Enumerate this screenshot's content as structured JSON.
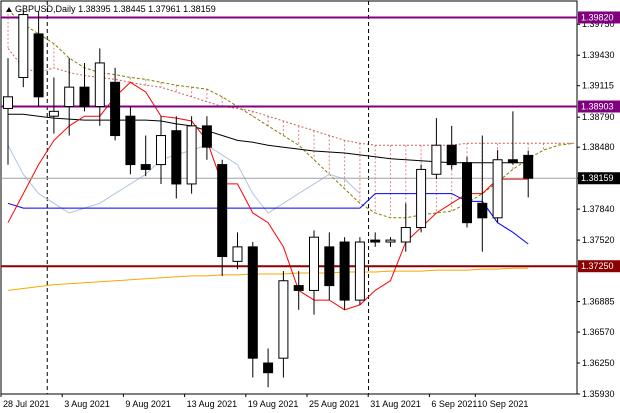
{
  "window": {
    "symbol": "GBPUSD",
    "timeframe": "Daily",
    "ohlc": "1.38395 1.38445 1.37961 1.38159",
    "symbol_icon": "symbol-triangle-icon"
  },
  "colors": {
    "bull": "#ffffff",
    "bear": "#000000",
    "tenkan": "#ff0000",
    "kijun": "#0000ff",
    "ma_slow": "#000000",
    "ma_long": "#ffa500",
    "chikou": "#b0c4de",
    "senkou_b": "#808000",
    "cloud": "#cd5c5c",
    "resistance_line": "#800080",
    "support_line": "#8b0000",
    "current_price": "#000000"
  },
  "chart_data": {
    "type": "candlestick",
    "title": "GBPUSD,Daily",
    "ylim": [
      1.3593,
      1.3999
    ],
    "y_ticks": [
      "1.39750",
      "1.39430",
      "1.39115",
      "1.38790",
      "1.38480",
      "1.38159",
      "1.37840",
      "1.37520",
      "1.37250",
      "1.36885",
      "1.36570",
      "1.36250",
      "1.35930"
    ],
    "x_ticks": [
      "28 Jul 2021",
      "3 Aug 2021",
      "9 Aug 2021",
      "13 Aug 2021",
      "19 Aug 2021",
      "25 Aug 2021",
      "31 Aug 2021",
      "6 Sep 2021",
      "10 Sep 2021"
    ],
    "x_tick_index": [
      0,
      4,
      8,
      12,
      16,
      20,
      24,
      28,
      31
    ],
    "candles": [
      {
        "o": 1.3888,
        "h": 1.394,
        "l": 1.383,
        "c": 1.39
      },
      {
        "o": 1.392,
        "h": 1.399,
        "l": 1.391,
        "c": 1.3985
      },
      {
        "o": 1.3965,
        "h": 1.3988,
        "l": 1.389,
        "c": 1.39
      },
      {
        "o": 1.388,
        "h": 1.392,
        "l": 1.3862,
        "c": 1.3885
      },
      {
        "o": 1.389,
        "h": 1.394,
        "l": 1.386,
        "c": 1.391
      },
      {
        "o": 1.391,
        "h": 1.3935,
        "l": 1.3885,
        "c": 1.389
      },
      {
        "o": 1.389,
        "h": 1.395,
        "l": 1.387,
        "c": 1.3935
      },
      {
        "o": 1.3915,
        "h": 1.393,
        "l": 1.3855,
        "c": 1.386
      },
      {
        "o": 1.388,
        "h": 1.389,
        "l": 1.382,
        "c": 1.383
      },
      {
        "o": 1.383,
        "h": 1.386,
        "l": 1.3818,
        "c": 1.3825
      },
      {
        "o": 1.383,
        "h": 1.388,
        "l": 1.381,
        "c": 1.386
      },
      {
        "o": 1.3865,
        "h": 1.388,
        "l": 1.3795,
        "c": 1.381
      },
      {
        "o": 1.381,
        "h": 1.388,
        "l": 1.38,
        "c": 1.387
      },
      {
        "o": 1.387,
        "h": 1.388,
        "l": 1.3835,
        "c": 1.3848
      },
      {
        "o": 1.383,
        "h": 1.3835,
        "l": 1.3715,
        "c": 1.3735
      },
      {
        "o": 1.373,
        "h": 1.376,
        "l": 1.3722,
        "c": 1.3745
      },
      {
        "o": 1.3745,
        "h": 1.375,
        "l": 1.361,
        "c": 1.363
      },
      {
        "o": 1.3625,
        "h": 1.364,
        "l": 1.36,
        "c": 1.3615
      },
      {
        "o": 1.363,
        "h": 1.372,
        "l": 1.361,
        "c": 1.371
      },
      {
        "o": 1.3705,
        "h": 1.372,
        "l": 1.368,
        "c": 1.37
      },
      {
        "o": 1.37,
        "h": 1.3762,
        "l": 1.3675,
        "c": 1.3755
      },
      {
        "o": 1.3745,
        "h": 1.376,
        "l": 1.369,
        "c": 1.3705
      },
      {
        "o": 1.375,
        "h": 1.3755,
        "l": 1.368,
        "c": 1.369
      },
      {
        "o": 1.369,
        "h": 1.3755,
        "l": 1.3685,
        "c": 1.375
      },
      {
        "o": 1.3752,
        "h": 1.376,
        "l": 1.3745,
        "c": 1.375
      },
      {
        "o": 1.375,
        "h": 1.3755,
        "l": 1.3745,
        "c": 1.3752
      },
      {
        "o": 1.375,
        "h": 1.379,
        "l": 1.374,
        "c": 1.3765
      },
      {
        "o": 1.3765,
        "h": 1.383,
        "l": 1.376,
        "c": 1.3825
      },
      {
        "o": 1.382,
        "h": 1.3878,
        "l": 1.3815,
        "c": 1.385
      },
      {
        "o": 1.385,
        "h": 1.387,
        "l": 1.3825,
        "c": 1.383
      },
      {
        "o": 1.3832,
        "h": 1.3838,
        "l": 1.3765,
        "c": 1.377
      },
      {
        "o": 1.379,
        "h": 1.386,
        "l": 1.374,
        "c": 1.3775
      },
      {
        "o": 1.3775,
        "h": 1.3845,
        "l": 1.377,
        "c": 1.3835
      },
      {
        "o": 1.3835,
        "h": 1.3885,
        "l": 1.383,
        "c": 1.3832
      },
      {
        "o": 1.38395,
        "h": 1.38445,
        "l": 1.37961,
        "c": 1.38159
      }
    ],
    "tenkan": [
      1.377,
      1.38,
      1.383,
      1.3855,
      1.387,
      1.388,
      1.388,
      1.39,
      1.3915,
      1.3905,
      1.388,
      1.3878,
      1.3875,
      1.3855,
      1.381,
      1.381,
      1.378,
      1.377,
      1.3745,
      1.37,
      1.369,
      1.369,
      1.368,
      1.3685,
      1.37,
      1.371,
      1.375,
      1.3765,
      1.378,
      1.379,
      1.38,
      1.38,
      1.3815,
      1.3815,
      1.3815
    ],
    "kijun": [
      1.379,
      1.3785,
      1.3785,
      1.3785,
      1.3785,
      1.3785,
      1.3785,
      1.3785,
      1.3785,
      1.3785,
      1.3785,
      1.3785,
      1.3785,
      1.3785,
      1.3785,
      1.3785,
      1.3785,
      1.3785,
      1.3785,
      1.3785,
      1.3785,
      1.3785,
      1.3785,
      1.3785,
      1.38,
      1.38,
      1.38,
      1.38,
      1.38,
      1.38,
      1.3792,
      1.3792,
      1.377,
      1.376,
      1.3748
    ],
    "ma_slow": [
      1.3882,
      1.3882,
      1.388,
      1.3878,
      1.3877,
      1.3876,
      1.3876,
      1.3876,
      1.3876,
      1.3876,
      1.3875,
      1.3872,
      1.387,
      1.3865,
      1.386,
      1.3855,
      1.3853,
      1.385,
      1.3848,
      1.3846,
      1.3844,
      1.3843,
      1.3842,
      1.384,
      1.3838,
      1.3836,
      1.3835,
      1.3834,
      1.3833,
      1.3832,
      1.3832,
      1.3832,
      1.3832,
      1.3832,
      1.3832
    ],
    "ma_long": [
      1.37,
      1.3702,
      1.3704,
      1.3706,
      1.3707,
      1.3708,
      1.3709,
      1.371,
      1.3711,
      1.3712,
      1.3713,
      1.3714,
      1.3715,
      1.3715,
      1.3716,
      1.3716,
      1.3717,
      1.3717,
      1.3717,
      1.3718,
      1.3718,
      1.3718,
      1.3719,
      1.3719,
      1.3719,
      1.372,
      1.372,
      1.372,
      1.3721,
      1.3721,
      1.3721,
      1.3722,
      1.3722,
      1.3723,
      1.3723
    ],
    "chikou": [
      1.385,
      1.382,
      1.38,
      1.379,
      1.378,
      1.3785,
      1.379,
      1.38,
      1.381,
      1.382,
      1.3835,
      1.384,
      1.3845,
      1.385,
      1.384,
      1.383,
      1.38,
      1.378,
      1.379,
      1.38,
      1.381,
      1.382,
      1.3815,
      1.38
    ],
    "senkou_a": [
      1.395,
      1.393,
      1.3925,
      1.393,
      1.3925,
      1.3922,
      1.392,
      1.3918,
      1.3915,
      1.3912,
      1.391,
      1.3905,
      1.39,
      1.3895,
      1.389,
      1.3888,
      1.3885,
      1.388,
      1.3875,
      1.387,
      1.3865,
      1.386,
      1.3855,
      1.3852,
      1.385,
      1.385,
      1.385,
      1.385,
      1.385,
      1.385,
      1.3852,
      1.3852,
      1.3852,
      1.3852,
      1.3852,
      1.3852,
      1.3852,
      1.3852,
      1.3852,
      1.3852,
      1.3852,
      1.3852,
      1.3852,
      1.3852,
      1.3852,
      1.3852,
      1.3852,
      1.3852,
      1.3852,
      1.3852,
      1.3852
    ],
    "senkou_b": [
      1.399,
      1.3975,
      1.3965,
      1.3955,
      1.394,
      1.393,
      1.3925,
      1.3923,
      1.392,
      1.3918,
      1.3915,
      1.3912,
      1.391,
      1.3908,
      1.39,
      1.389,
      1.388,
      1.387,
      1.386,
      1.385,
      1.3835,
      1.382,
      1.3805,
      1.379,
      1.378,
      1.3775,
      1.3775,
      1.3778,
      1.378,
      1.3782,
      1.379,
      1.38,
      1.3812,
      1.3825,
      1.3836,
      1.3845,
      1.385,
      1.3852,
      1.3848,
      1.3842,
      1.3838,
      1.3836,
      1.3835,
      1.3835,
      1.3835,
      1.3835,
      1.3835,
      1.3835,
      1.3835,
      1.3835,
      1.3835
    ],
    "resistance_levels": [
      {
        "price": 1.3982,
        "label": "1.39820",
        "color": "#800080"
      },
      {
        "price": 1.389,
        "label": "1.38903",
        "color": "#800080"
      }
    ],
    "support_levels": [
      {
        "price": 1.3725,
        "label": "1.37250",
        "color": "#8b0000"
      }
    ],
    "current_price": {
      "price": 1.38159,
      "label": "1.38159"
    },
    "vertical_separators": [
      2,
      23
    ],
    "grid": false
  }
}
